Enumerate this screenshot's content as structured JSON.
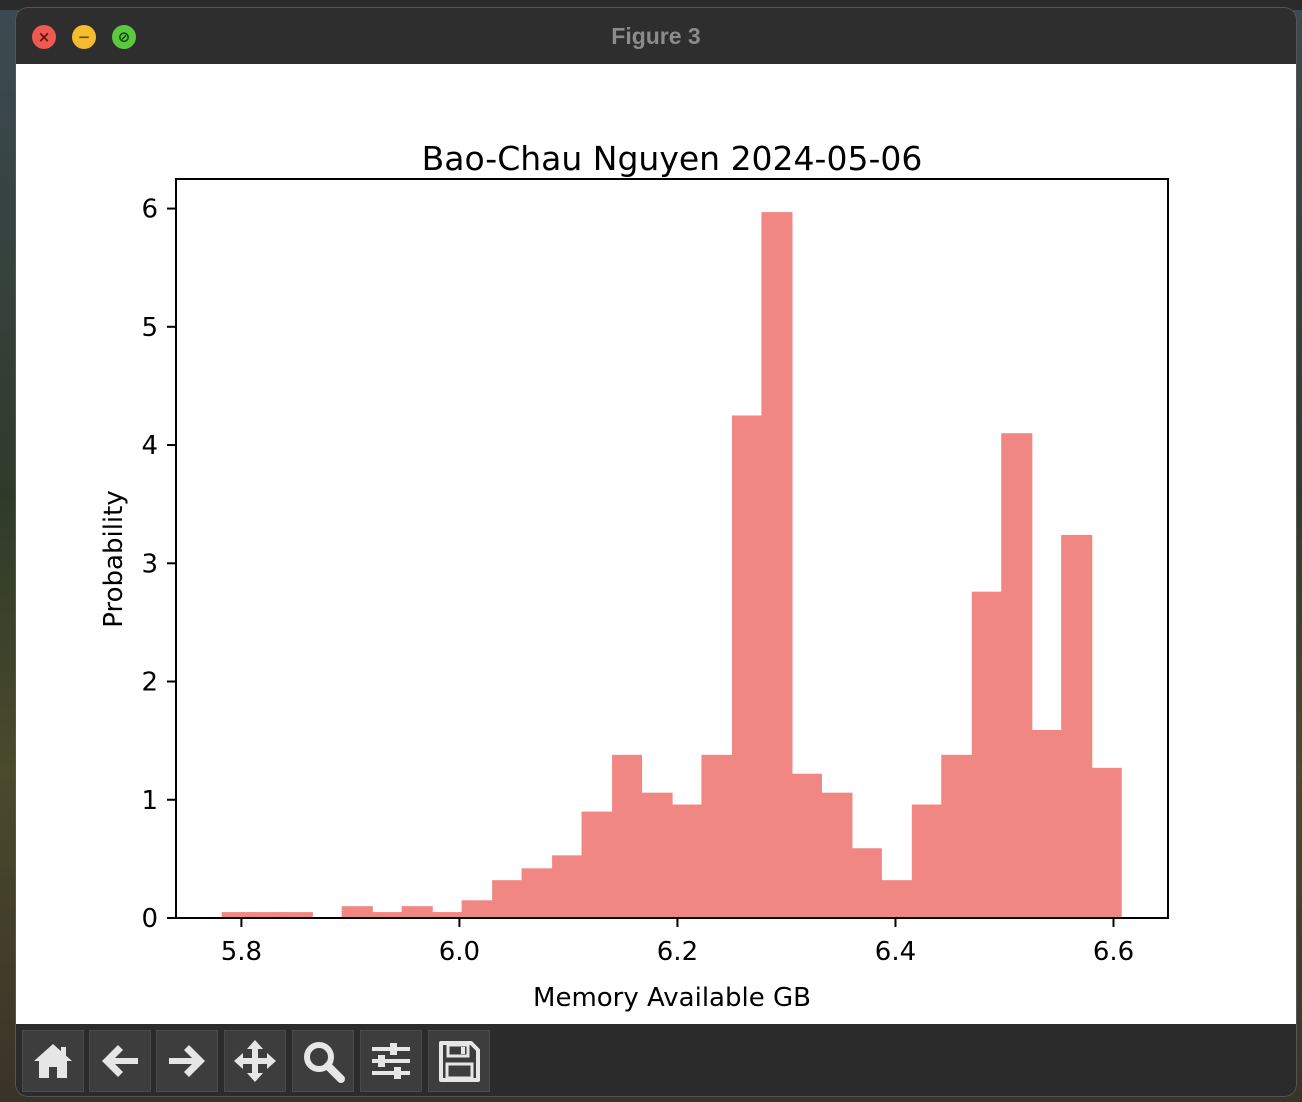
{
  "window": {
    "title": "Figure 3",
    "close_glyph": "×",
    "minimize_glyph": "−",
    "maximize_glyph": "⊘"
  },
  "toolbar": {
    "tools": [
      {
        "name": "home-icon"
      },
      {
        "name": "back-arrow-icon"
      },
      {
        "name": "forward-arrow-icon"
      },
      {
        "name": "pan-move-icon"
      },
      {
        "name": "zoom-magnifier-icon"
      },
      {
        "name": "configure-subplots-icon"
      },
      {
        "name": "save-floppy-icon"
      }
    ],
    "icon_color": "#e6e6e6"
  },
  "chart_data": {
    "type": "bar",
    "title": "Bao-Chau Nguyen 2024-05-06",
    "xlabel": "Memory Available GB",
    "ylabel": "Probability",
    "xlim": [
      5.74,
      6.65
    ],
    "ylim": [
      0,
      6.25
    ],
    "xticks": [
      5.8,
      6.0,
      6.2,
      6.4,
      6.6
    ],
    "xtick_labels": [
      "5.8",
      "6.0",
      "6.2",
      "6.4",
      "6.6"
    ],
    "yticks": [
      0,
      1,
      2,
      3,
      4,
      5,
      6
    ],
    "ytick_labels": [
      "0",
      "1",
      "2",
      "3",
      "4",
      "5",
      "6"
    ],
    "bar_color": "#f08783",
    "grid": false,
    "bins": [
      {
        "x0": 5.782,
        "x1": 5.81,
        "value": 0.05
      },
      {
        "x0": 5.81,
        "x1": 5.837,
        "value": 0.05
      },
      {
        "x0": 5.837,
        "x1": 5.865,
        "value": 0.05
      },
      {
        "x0": 5.865,
        "x1": 5.892,
        "value": 0.0
      },
      {
        "x0": 5.892,
        "x1": 5.92,
        "value": 0.1
      },
      {
        "x0": 5.92,
        "x1": 5.947,
        "value": 0.05
      },
      {
        "x0": 5.947,
        "x1": 5.975,
        "value": 0.1
      },
      {
        "x0": 5.975,
        "x1": 6.002,
        "value": 0.05
      },
      {
        "x0": 6.002,
        "x1": 6.03,
        "value": 0.15
      },
      {
        "x0": 6.03,
        "x1": 6.057,
        "value": 0.32
      },
      {
        "x0": 6.057,
        "x1": 6.085,
        "value": 0.42
      },
      {
        "x0": 6.085,
        "x1": 6.112,
        "value": 0.53
      },
      {
        "x0": 6.112,
        "x1": 6.14,
        "value": 0.9
      },
      {
        "x0": 6.14,
        "x1": 6.167,
        "value": 1.38
      },
      {
        "x0": 6.167,
        "x1": 6.195,
        "value": 1.06
      },
      {
        "x0": 6.195,
        "x1": 6.222,
        "value": 0.96
      },
      {
        "x0": 6.222,
        "x1": 6.25,
        "value": 1.38
      },
      {
        "x0": 6.25,
        "x1": 6.277,
        "value": 4.25
      },
      {
        "x0": 6.277,
        "x1": 6.305,
        "value": 5.97
      },
      {
        "x0": 6.305,
        "x1": 6.332,
        "value": 1.22
      },
      {
        "x0": 6.332,
        "x1": 6.36,
        "value": 1.06
      },
      {
        "x0": 6.36,
        "x1": 6.387,
        "value": 0.59
      },
      {
        "x0": 6.387,
        "x1": 6.415,
        "value": 0.32
      },
      {
        "x0": 6.415,
        "x1": 6.442,
        "value": 0.96
      },
      {
        "x0": 6.442,
        "x1": 6.47,
        "value": 1.38
      },
      {
        "x0": 6.47,
        "x1": 6.497,
        "value": 2.76
      },
      {
        "x0": 6.497,
        "x1": 6.525,
        "value": 4.1
      },
      {
        "x0": 6.525,
        "x1": 6.552,
        "value": 1.59
      },
      {
        "x0": 6.552,
        "x1": 6.58,
        "value": 3.24
      },
      {
        "x0": 6.58,
        "x1": 6.607,
        "value": 1.27
      }
    ]
  }
}
